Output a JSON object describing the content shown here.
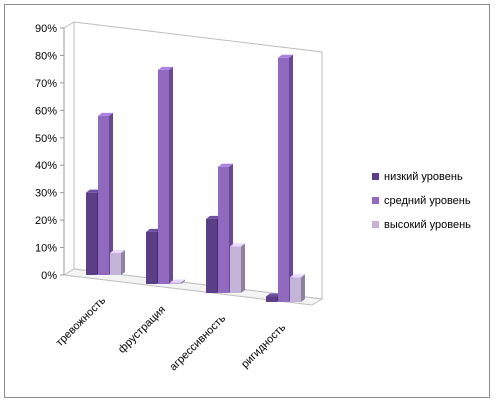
{
  "chart_data": {
    "type": "bar",
    "categories": [
      "тревожность",
      "фрустрация",
      "агрессивность",
      "ригидность"
    ],
    "series": [
      {
        "name": "низкий уровень",
        "values": [
          30,
          19,
          27,
          2
        ],
        "color": "#5b3f86"
      },
      {
        "name": "средний уровень",
        "values": [
          58,
          78,
          46,
          89
        ],
        "color": "#8f6abf"
      },
      {
        "name": "высокий уровень",
        "values": [
          8,
          0,
          17,
          9
        ],
        "color": "#c3b4d8"
      }
    ],
    "ylim": [
      0,
      90
    ],
    "yticks": [
      "0%",
      "10%",
      "20%",
      "30%",
      "40%",
      "50%",
      "60%",
      "70%",
      "80%",
      "90%"
    ],
    "grid": false,
    "legend_position": "right",
    "style": "3d-clustered-column"
  }
}
